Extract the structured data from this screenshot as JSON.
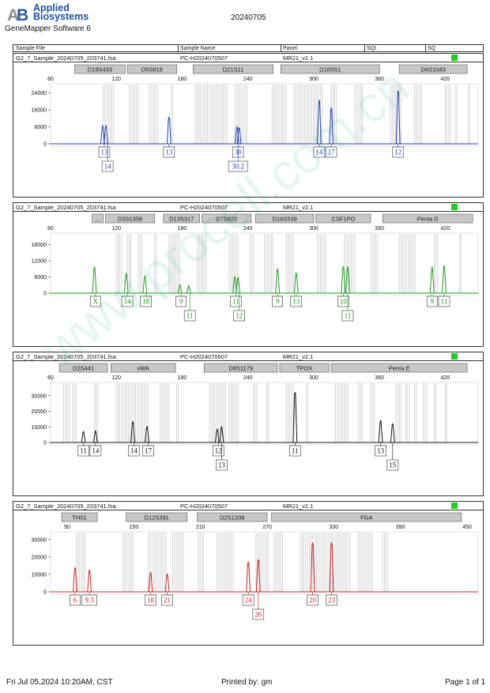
{
  "header": {
    "logo_line1": "Applied",
    "logo_line2": "Biosystems",
    "software": "GeneMapper Software 6",
    "report_date": "20240705"
  },
  "columns": [
    "Sample File",
    "Sample Name",
    "Panel",
    "SQI",
    "SQ"
  ],
  "watermark": "www.procell.com.cn",
  "colors": {
    "blue": "#1f3fb0",
    "green": "#1a9a1a",
    "black": "#111111",
    "red": "#cc1f1f",
    "quality": "#22cc22",
    "marker_fill": "#c8c8c8"
  },
  "footer": {
    "left": "Fri Jul 05,2024 10:20AM, CST",
    "center": "Printed by: gm",
    "right": "Page 1 of 1"
  },
  "chart_data": [
    {
      "type": "line",
      "dye": "blue",
      "sample_file": "G2_7_Sample_20240705_203741.fsa",
      "sample_name": "PC-H2024070507",
      "panel": "MR21_v2.1",
      "xlim": [
        60,
        450
      ],
      "x_ticks": [
        60,
        120,
        180,
        240,
        300,
        360,
        420
      ],
      "ylim": [
        0,
        28000
      ],
      "y_ticks": [
        0,
        8000,
        16000,
        24000
      ],
      "markers": [
        {
          "name": "D19S433",
          "range": [
            82,
            128
          ]
        },
        {
          "name": "D5S818",
          "range": [
            130,
            175
          ]
        },
        {
          "name": "D21S11",
          "range": [
            190,
            263
          ]
        },
        {
          "name": "D18S51",
          "range": [
            270,
            360
          ]
        },
        {
          "name": "D6S1043",
          "range": [
            378,
            440
          ]
        }
      ],
      "bins": [
        [
          108,
          118
        ],
        [
          132,
          140
        ],
        [
          150,
          158
        ],
        [
          170,
          172
        ],
        [
          192,
          222
        ],
        [
          228,
          240
        ],
        [
          262,
          276
        ],
        [
          282,
          308
        ],
        [
          316,
          322
        ],
        [
          338,
          346
        ],
        [
          370,
          380
        ],
        [
          392,
          400
        ],
        [
          420,
          425
        ],
        [
          429,
          431
        ],
        [
          441,
          443
        ]
      ],
      "peaks": [
        {
          "x": 107.5,
          "height": 8500
        },
        {
          "x": 110.5,
          "height": 8500
        },
        {
          "x": 168,
          "height": 12500
        },
        {
          "x": 230,
          "height": 8000
        },
        {
          "x": 232,
          "height": 7500
        },
        {
          "x": 305,
          "height": 20500
        },
        {
          "x": 316,
          "height": 17000
        },
        {
          "x": 377,
          "height": 25000
        }
      ],
      "calls": [
        {
          "x": 109,
          "label": "13",
          "row": 1
        },
        {
          "x": 112,
          "label": "14",
          "row": 2
        },
        {
          "x": 168,
          "label": "13",
          "row": 1
        },
        {
          "x": 231,
          "label": "30",
          "row": 1
        },
        {
          "x": 231,
          "label": "30.2",
          "row": 2
        },
        {
          "x": 305,
          "label": "14",
          "row": 1
        },
        {
          "x": 316,
          "label": "17",
          "row": 1
        },
        {
          "x": 377,
          "label": "12",
          "row": 1
        }
      ]
    },
    {
      "type": "line",
      "dye": "green",
      "sample_file": "G2_7_Sample_20240705_203741.fsa",
      "sample_name": "PC-H2024070507",
      "panel": "MR21_v2.1",
      "xlim": [
        60,
        450
      ],
      "x_ticks": [
        60,
        120,
        180,
        240,
        300,
        360,
        420
      ],
      "ylim": [
        0,
        22000
      ],
      "y_ticks": [
        0,
        6000,
        12000,
        18000
      ],
      "markers": [
        {
          "name": "...",
          "range": [
            98,
            108
          ]
        },
        {
          "name": "D3S1358",
          "range": [
            110,
            155
          ]
        },
        {
          "name": "D13S317",
          "range": [
            163,
            196
          ]
        },
        {
          "name": "D7S820",
          "range": [
            198,
            243
          ]
        },
        {
          "name": "D16S539",
          "range": [
            247,
            300
          ]
        },
        {
          "name": "CSF1PO",
          "range": [
            302,
            352
          ]
        },
        {
          "name": "Penta D",
          "range": [
            363,
            445
          ]
        }
      ],
      "bins": [
        [
          120,
          126
        ],
        [
          130,
          134
        ],
        [
          140,
          144
        ],
        [
          155,
          158
        ],
        [
          168,
          178
        ],
        [
          194,
          203
        ],
        [
          223,
          231
        ],
        [
          242,
          246
        ],
        [
          255,
          264
        ],
        [
          275,
          282
        ],
        [
          303,
          312
        ],
        [
          328,
          338
        ],
        [
          352,
          360
        ],
        [
          378,
          394
        ],
        [
          410,
          414
        ],
        [
          433,
          436
        ]
      ],
      "peaks": [
        {
          "x": 100,
          "height": 9700
        },
        {
          "x": 129,
          "height": 7300
        },
        {
          "x": 146,
          "height": 6400
        },
        {
          "x": 178,
          "height": 3200
        },
        {
          "x": 186,
          "height": 2800
        },
        {
          "x": 228,
          "height": 6100
        },
        {
          "x": 231,
          "height": 5800
        },
        {
          "x": 267,
          "height": 9000
        },
        {
          "x": 284,
          "height": 7500
        },
        {
          "x": 327,
          "height": 9800
        },
        {
          "x": 331,
          "height": 9800
        },
        {
          "x": 408,
          "height": 9600
        },
        {
          "x": 419,
          "height": 10100
        }
      ],
      "calls": [
        {
          "x": 101,
          "label": "X",
          "row": 1
        },
        {
          "x": 130,
          "label": "14",
          "row": 1
        },
        {
          "x": 147,
          "label": "18",
          "row": 1
        },
        {
          "x": 179,
          "label": "9",
          "row": 1
        },
        {
          "x": 187,
          "label": "11",
          "row": 2
        },
        {
          "x": 229,
          "label": "11",
          "row": 1
        },
        {
          "x": 232,
          "label": "12",
          "row": 2
        },
        {
          "x": 267,
          "label": "9",
          "row": 1
        },
        {
          "x": 284,
          "label": "13",
          "row": 1
        },
        {
          "x": 327,
          "label": "10",
          "row": 1
        },
        {
          "x": 331,
          "label": "11",
          "row": 2
        },
        {
          "x": 408,
          "label": "9",
          "row": 1
        },
        {
          "x": 419,
          "label": "11",
          "row": 1
        }
      ]
    },
    {
      "type": "line",
      "dye": "black",
      "sample_file": "G2_7_Sample_20240705_203741.fsa",
      "sample_name": "PC-H2024070507",
      "panel": "MR21_v2.1",
      "xlim": [
        60,
        450
      ],
      "x_ticks": [
        60,
        120,
        180,
        240,
        300,
        360,
        420
      ],
      "ylim": [
        0,
        38000
      ],
      "y_ticks": [
        0,
        10000,
        20000,
        30000
      ],
      "markers": [
        {
          "name": "D2S441",
          "range": [
            68,
            112
          ]
        },
        {
          "name": "vWA",
          "range": [
            115,
            174
          ]
        },
        {
          "name": "D8S1179",
          "range": [
            200,
            267
          ]
        },
        {
          "name": "TPOX",
          "range": [
            269,
            314
          ]
        },
        {
          "name": "Penta E",
          "range": [
            316,
            440
          ]
        }
      ],
      "bins": [
        [
          72,
          78
        ],
        [
          80,
          84
        ],
        [
          100,
          104
        ],
        [
          120,
          150
        ],
        [
          160,
          168
        ],
        [
          175,
          178
        ],
        [
          205,
          220
        ],
        [
          223,
          232
        ],
        [
          245,
          249
        ],
        [
          257,
          260
        ],
        [
          275,
          282
        ],
        [
          293,
          296
        ],
        [
          320,
          332
        ],
        [
          341,
          345
        ],
        [
          352,
          356
        ],
        [
          375,
          380
        ],
        [
          384,
          388
        ],
        [
          392,
          395
        ],
        [
          400,
          404
        ],
        [
          410,
          413
        ],
        [
          420,
          423
        ]
      ],
      "peaks": [
        {
          "x": 90,
          "height": 7000
        },
        {
          "x": 101,
          "height": 7400
        },
        {
          "x": 135,
          "height": 13300
        },
        {
          "x": 148,
          "height": 10200
        },
        {
          "x": 212,
          "height": 8500
        },
        {
          "x": 216,
          "height": 10100
        },
        {
          "x": 283,
          "height": 32000
        },
        {
          "x": 361,
          "height": 14000
        },
        {
          "x": 372,
          "height": 12000
        }
      ],
      "calls": [
        {
          "x": 90,
          "label": "11",
          "row": 1
        },
        {
          "x": 101,
          "label": "14",
          "row": 1
        },
        {
          "x": 136,
          "label": "14",
          "row": 1
        },
        {
          "x": 149,
          "label": "17",
          "row": 1
        },
        {
          "x": 213,
          "label": "12",
          "row": 1
        },
        {
          "x": 216,
          "label": "13",
          "row": 2
        },
        {
          "x": 283,
          "label": "11",
          "row": 1
        },
        {
          "x": 361,
          "label": "13",
          "row": 1
        },
        {
          "x": 372,
          "label": "15",
          "row": 2
        }
      ]
    },
    {
      "type": "line",
      "dye": "red",
      "sample_file": "G2_7_Sample_20240705_203741.fsa",
      "sample_name": "PC-H2024070507",
      "panel": "MR21_v2.1",
      "xlim": [
        75,
        460
      ],
      "x_ticks": [
        90,
        150,
        210,
        270,
        330,
        390,
        450
      ],
      "ylim": [
        0,
        34000
      ],
      "y_ticks": [
        0,
        10000,
        20000,
        30000
      ],
      "markers": [
        {
          "name": "TH01",
          "range": [
            85,
            117
          ]
        },
        {
          "name": "D12S391",
          "range": [
            143,
            198
          ]
        },
        {
          "name": "D2S1338",
          "range": [
            207,
            270
          ]
        },
        {
          "name": "FGA",
          "range": [
            274,
            445
          ]
        }
      ],
      "bins": [
        [
          98,
          106
        ],
        [
          140,
          150
        ],
        [
          163,
          180
        ],
        [
          185,
          195
        ],
        [
          208,
          214
        ],
        [
          225,
          240
        ],
        [
          260,
          272
        ],
        [
          276,
          285
        ],
        [
          300,
          345
        ],
        [
          352,
          366
        ],
        [
          374,
          380
        ]
      ],
      "peaks": [
        {
          "x": 97,
          "height": 13800
        },
        {
          "x": 110,
          "height": 12500
        },
        {
          "x": 165,
          "height": 11000
        },
        {
          "x": 180,
          "height": 10200
        },
        {
          "x": 253,
          "height": 17000
        },
        {
          "x": 262,
          "height": 18500
        },
        {
          "x": 311,
          "height": 28000
        },
        {
          "x": 328,
          "height": 28000
        }
      ],
      "calls": [
        {
          "x": 97,
          "label": "6",
          "row": 1
        },
        {
          "x": 110,
          "label": "9.3",
          "row": 1
        },
        {
          "x": 165,
          "label": "18",
          "row": 1
        },
        {
          "x": 180,
          "label": "21",
          "row": 1
        },
        {
          "x": 253,
          "label": "24",
          "row": 1
        },
        {
          "x": 262,
          "label": "26",
          "row": 2
        },
        {
          "x": 311,
          "label": "20",
          "row": 1
        },
        {
          "x": 328,
          "label": "23",
          "row": 1
        }
      ]
    }
  ]
}
